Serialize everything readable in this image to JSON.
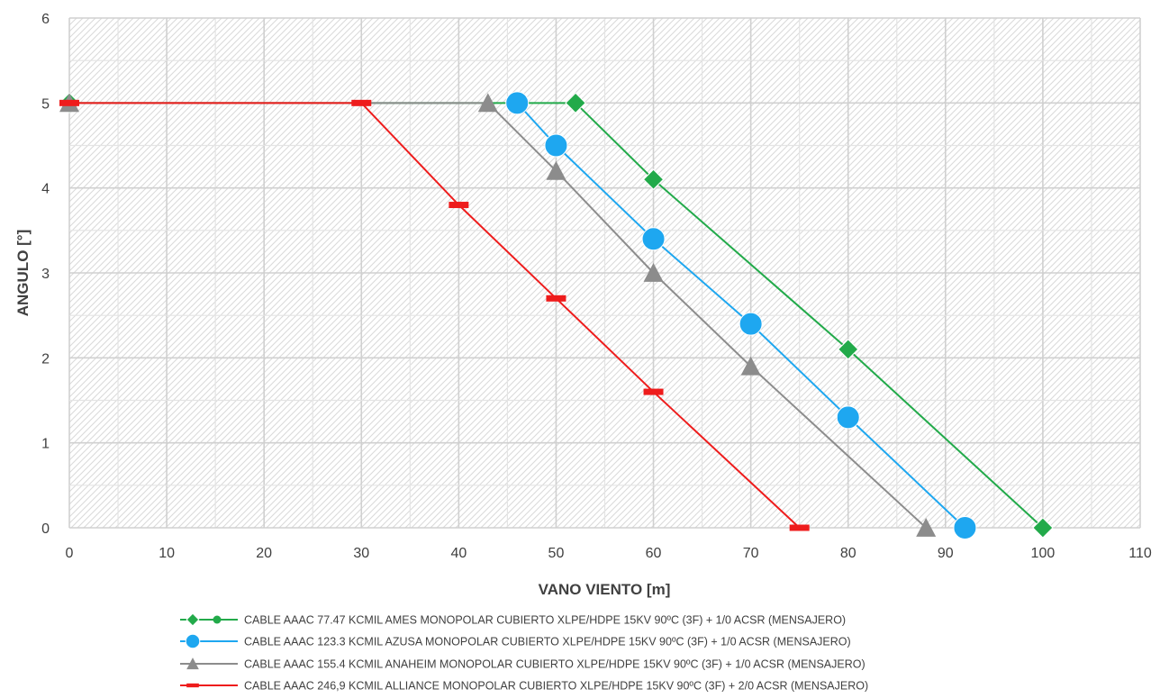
{
  "chart_data": {
    "type": "line",
    "title": "",
    "xlabel": "VANO VIENTO [m]",
    "ylabel": "ANGULO [°]",
    "xlim": [
      0,
      110
    ],
    "ylim": [
      0,
      6
    ],
    "x_ticks": [
      0,
      10,
      20,
      30,
      40,
      50,
      60,
      70,
      80,
      90,
      100,
      110
    ],
    "y_ticks": [
      0,
      1,
      2,
      3,
      4,
      5,
      6
    ],
    "grid": true,
    "legend_position": "bottom",
    "series": [
      {
        "name": "CABLE AAAC 77.47 KCMIL AMES MONOPOLAR CUBIERTO XLPE/HDPE 15KV 90ºC (3F) + 1/0 ACSR  (MENSAJERO)",
        "color": "#22AA4A",
        "marker": "diamond",
        "x": [
          0,
          52,
          60,
          80,
          100
        ],
        "y": [
          5,
          5,
          4.1,
          2.1,
          0
        ]
      },
      {
        "name": "CABLE AAAC 123.3 KCMIL AZUSA MONOPOLAR CUBIERTO XLPE/HDPE 15KV 90ºC (3F) + 1/0 ACSR  (MENSAJERO)",
        "color": "#1EA7F0",
        "marker": "circle",
        "x": [
          46,
          50,
          60,
          70,
          80,
          92
        ],
        "y": [
          5,
          4.5,
          3.4,
          2.4,
          1.3,
          0
        ]
      },
      {
        "name": "CABLE AAAC 155.4 KCMIL ANAHEIM  MONOPOLAR CUBIERTO XLPE/HDPE 15KV 90ºC (3F) + 1/0 ACSR  (MENSAJERO)",
        "color": "#8C8C8C",
        "marker": "triangle",
        "x": [
          0,
          43,
          50,
          60,
          70,
          88
        ],
        "y": [
          5,
          5,
          4.2,
          3,
          1.9,
          0
        ]
      },
      {
        "name": "CABLE AAAC 246,9 KCMIL ALLIANCE MONOPOLAR CUBIERTO XLPE/HDPE 15KV 90ºC (3F) + 2/0 ACSR  (MENSAJERO)",
        "color": "#EE1C1C",
        "marker": "dash",
        "x": [
          0,
          30,
          40,
          50,
          60,
          75
        ],
        "y": [
          5,
          5,
          3.8,
          2.7,
          1.6,
          0
        ]
      }
    ]
  }
}
